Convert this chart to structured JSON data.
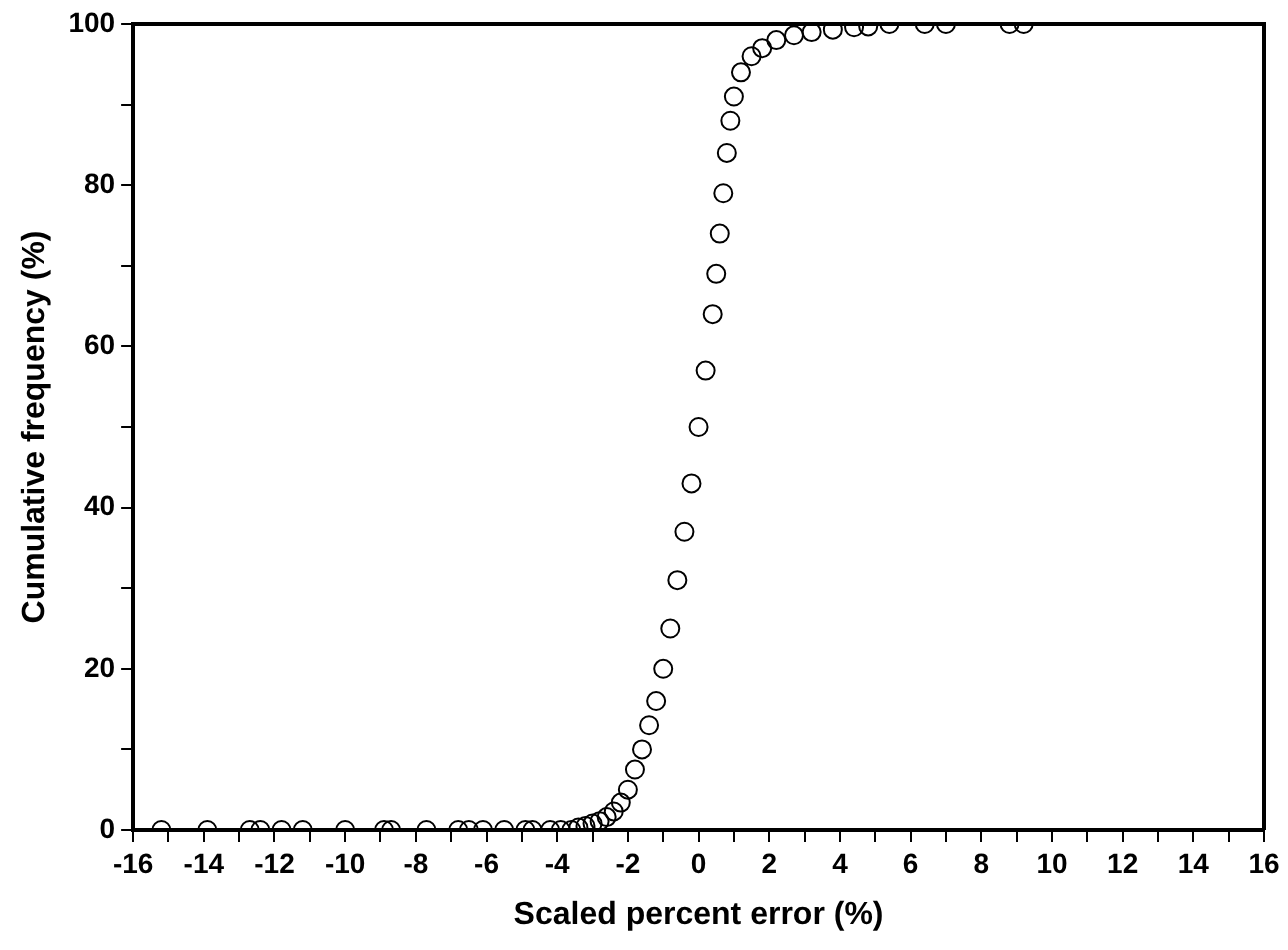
{
  "chart_data": {
    "type": "scatter",
    "xlabel": "Scaled percent error (%)",
    "ylabel": "Cumulative frequency (%)",
    "marker": "circle",
    "color": "#000000",
    "x": [
      -15.2,
      -13.9,
      -12.7,
      -12.4,
      -11.8,
      -11.2,
      -10,
      -8.9,
      -8.7,
      -7.7,
      -6.8,
      -6.5,
      -6.1,
      -5.5,
      -4.9,
      -4.7,
      -4.2,
      -3.9,
      -3.6,
      -3.4,
      -3.2,
      -3.0,
      -2.8,
      -2.6,
      -2.4,
      -2.2,
      -2.0,
      -1.8,
      -1.6,
      -1.4,
      -1.2,
      -1.0,
      -0.8,
      -0.6,
      -0.4,
      -0.2,
      0,
      0.2,
      0.4,
      0.5,
      0.6,
      0.7,
      0.8,
      0.9,
      1.0,
      1.2,
      1.5,
      1.8,
      2.2,
      2.7,
      3.2,
      3.8,
      4.4,
      4.8,
      5.4,
      6.4,
      7.0,
      8.8,
      9.2
    ],
    "values": [
      0,
      0,
      0,
      0,
      0,
      0,
      0,
      0,
      0,
      0,
      0,
      0,
      0,
      0,
      0,
      0,
      0,
      0,
      0,
      0.3,
      0.5,
      0.8,
      1.1,
      1.6,
      2.3,
      3.4,
      5,
      7.5,
      10,
      13,
      16,
      20,
      25,
      31,
      37,
      43,
      50,
      57,
      64,
      69,
      74,
      79,
      84,
      88,
      91,
      94,
      96,
      97,
      98,
      98.6,
      99,
      99.3,
      99.6,
      99.7,
      100,
      100,
      100,
      100,
      100
    ],
    "xlim": [
      -16,
      16
    ],
    "ylim": [
      0,
      100
    ],
    "xticks": [
      -16,
      {
        "value": -15,
        "label": null
      },
      -14,
      {
        "value": -13,
        "label": null
      },
      -12,
      {
        "value": -11,
        "label": null
      },
      -10,
      {
        "value": -9,
        "label": null
      },
      -8,
      {
        "value": -7,
        "label": null
      },
      -6,
      {
        "value": -5,
        "label": null
      },
      -4,
      {
        "value": -3,
        "label": null
      },
      -2,
      {
        "value": -1,
        "label": null
      },
      0,
      {
        "value": 1,
        "label": null
      },
      2,
      {
        "value": 3,
        "label": null
      },
      4,
      {
        "value": 5,
        "label": null
      },
      6,
      {
        "value": 7,
        "label": null
      },
      8,
      {
        "value": 9,
        "label": null
      },
      10,
      {
        "value": 11,
        "label": null
      },
      12,
      {
        "value": 13,
        "label": null
      },
      14,
      {
        "value": 15,
        "label": null
      },
      16
    ],
    "yticks": [
      0,
      {
        "value": 10,
        "label": null
      },
      20,
      {
        "value": 30,
        "label": null
      },
      40,
      {
        "value": 50,
        "label": null
      },
      60,
      {
        "value": 70,
        "label": null
      },
      80,
      {
        "value": 90,
        "label": null
      },
      100
    ]
  }
}
